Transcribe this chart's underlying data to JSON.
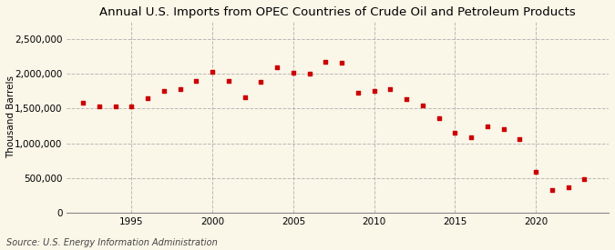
{
  "title": "Annual U.S. Imports from OPEC Countries of Crude Oil and Petroleum Products",
  "ylabel": "Thousand Barrels",
  "source": "Source: U.S. Energy Information Administration",
  "background_color": "#FAF6E8",
  "marker_color": "#CC0000",
  "grid_color": "#AAAAAA",
  "years": [
    1992,
    1993,
    1994,
    1995,
    1996,
    1997,
    1998,
    1999,
    2000,
    2001,
    2002,
    2003,
    2004,
    2005,
    2006,
    2007,
    2008,
    2009,
    2010,
    2011,
    2012,
    2013,
    2014,
    2015,
    2016,
    2017,
    2018,
    2019,
    2020,
    2021,
    2022,
    2023
  ],
  "values": [
    1580000,
    1530000,
    1530000,
    1530000,
    1650000,
    1760000,
    1780000,
    1900000,
    2030000,
    1900000,
    1660000,
    1880000,
    2100000,
    2020000,
    2000000,
    2170000,
    2160000,
    1730000,
    1760000,
    1780000,
    1640000,
    1550000,
    1360000,
    1150000,
    1090000,
    1240000,
    1200000,
    1060000,
    590000,
    330000,
    360000,
    480000
  ],
  "xlim": [
    1991,
    2024.5
  ],
  "ylim": [
    0,
    2750000
  ],
  "yticks": [
    0,
    500000,
    1000000,
    1500000,
    2000000,
    2500000
  ],
  "xticks": [
    1995,
    2000,
    2005,
    2010,
    2015,
    2020
  ],
  "title_fontsize": 9.5,
  "label_fontsize": 7.5,
  "tick_fontsize": 7.5,
  "source_fontsize": 7
}
